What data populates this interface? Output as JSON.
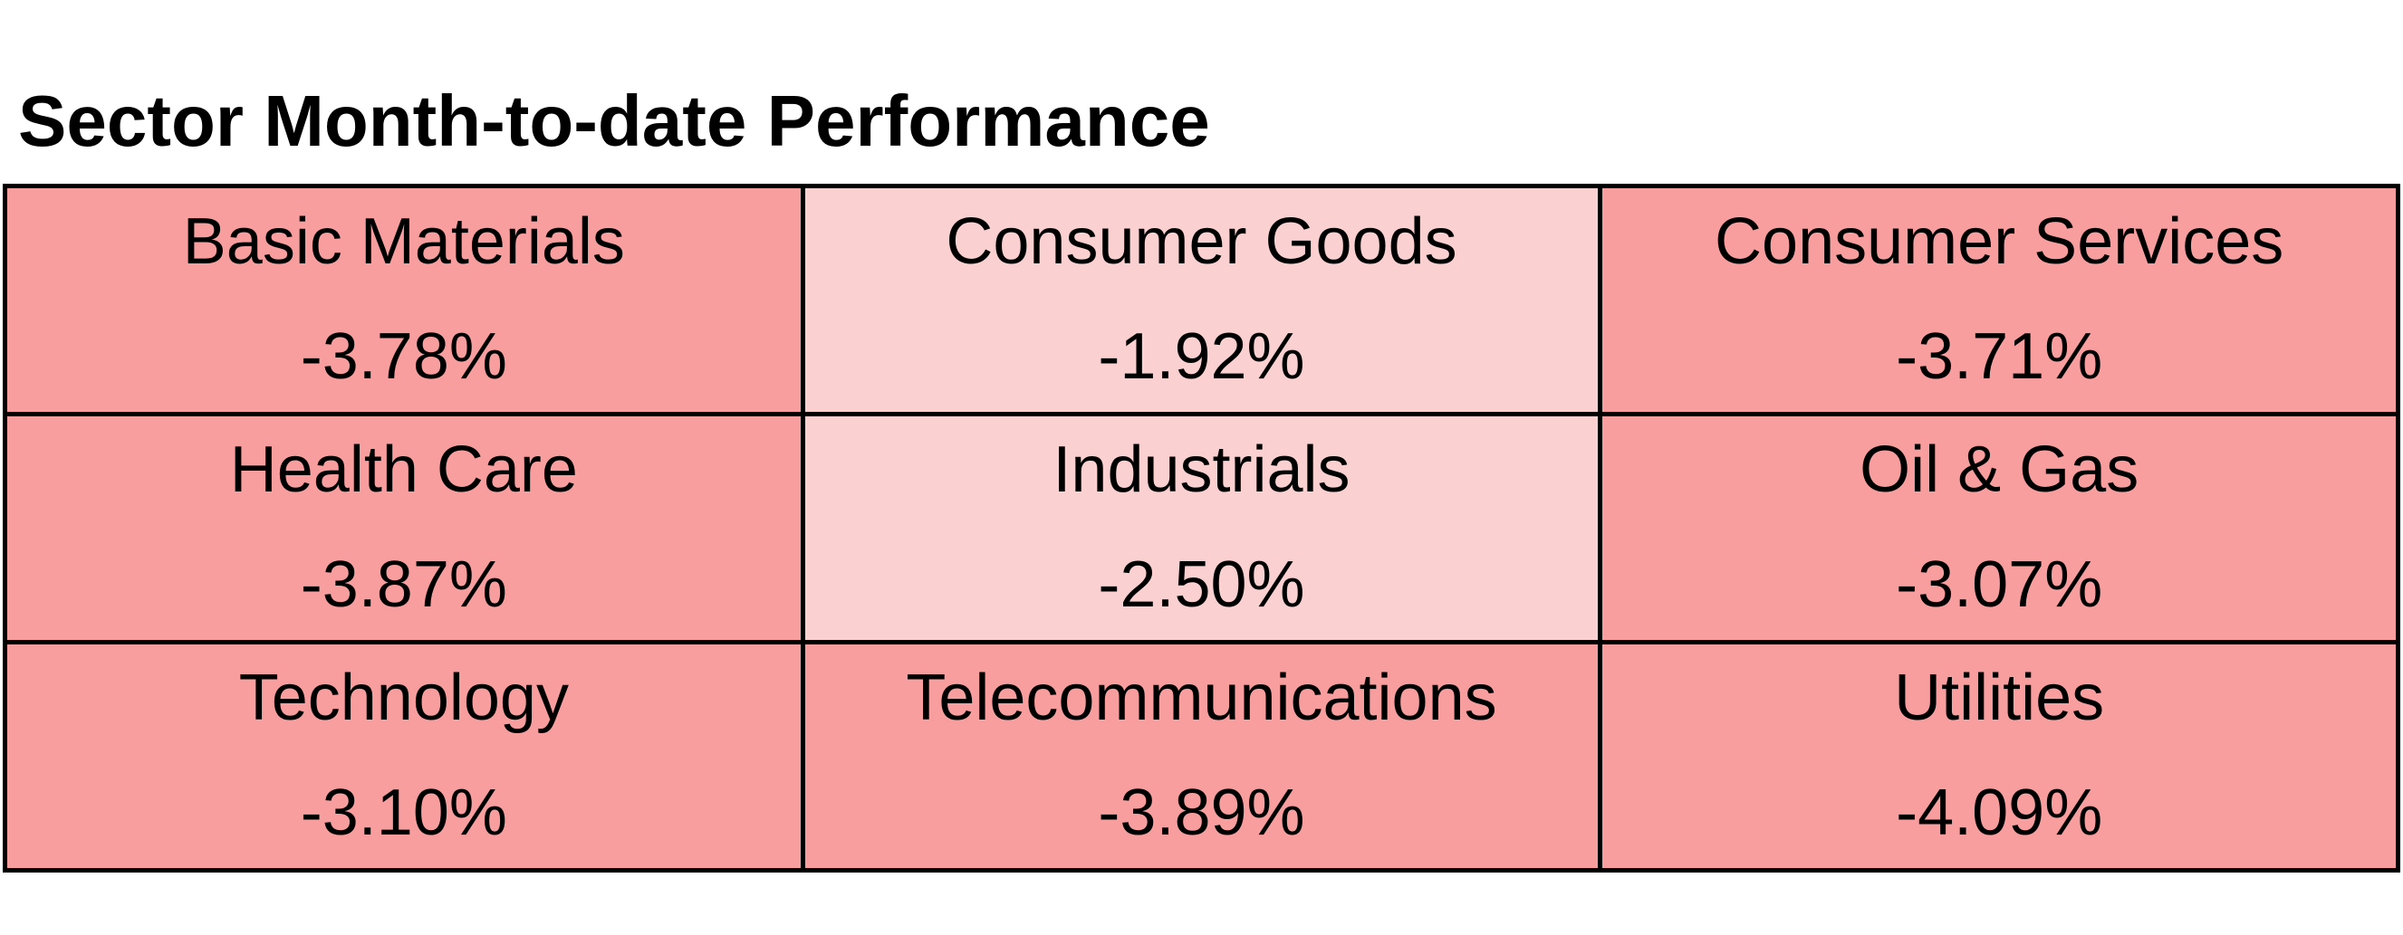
{
  "title": "Sector Month-to-date Performance",
  "table": {
    "rows": [
      [
        {
          "label": "Basic Materials",
          "value": "-3.78%",
          "color": "#f89e9f"
        },
        {
          "label": "Consumer Goods",
          "value": "-1.92%",
          "color": "#fbd0d1"
        },
        {
          "label": "Consumer Services",
          "value": "-3.71%",
          "color": "#f89e9f"
        }
      ],
      [
        {
          "label": "Health Care",
          "value": "-3.87%",
          "color": "#f89e9f"
        },
        {
          "label": "Industrials",
          "value": "-2.50%",
          "color": "#fbd0d1"
        },
        {
          "label": "Oil & Gas",
          "value": "-3.07%",
          "color": "#f89e9f"
        }
      ],
      [
        {
          "label": "Technology",
          "value": "-3.10%",
          "color": "#f89e9f"
        },
        {
          "label": "Telecommunications",
          "value": "-3.89%",
          "color": "#f89e9f"
        },
        {
          "label": "Utilities",
          "value": "-4.09%",
          "color": "#f89e9f"
        }
      ]
    ]
  }
}
